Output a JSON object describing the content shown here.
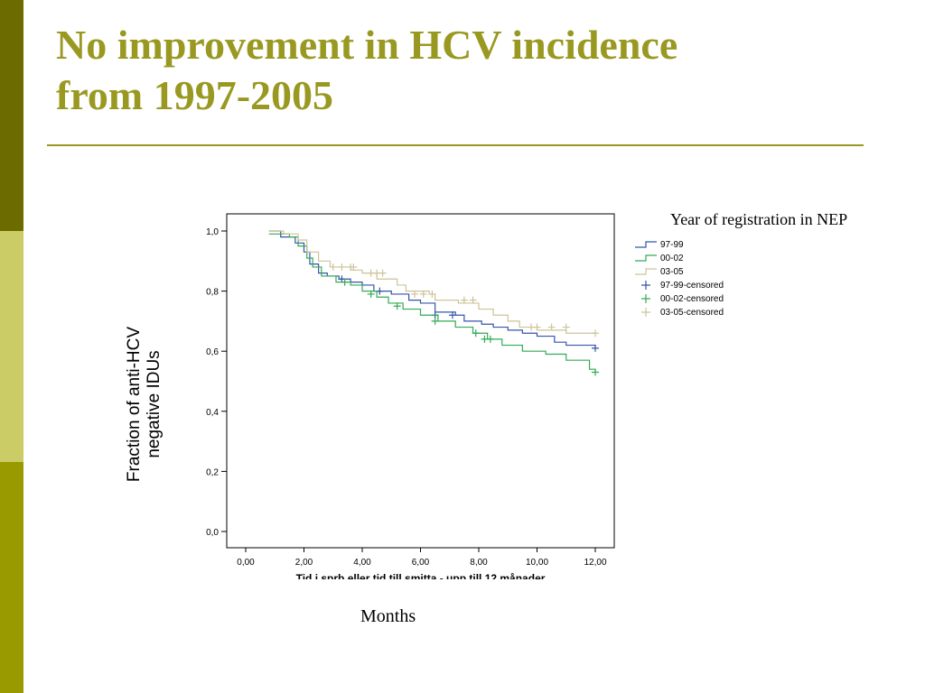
{
  "slide": {
    "title_line1": "No improvement in HCV incidence",
    "title_line2": "from 1997-2005",
    "y_axis_label_line1": "Fraction of anti-HCV",
    "y_axis_label_line2": "negative IDUs",
    "legend_title": "Year of registration in NEP",
    "x_caption": "Months",
    "colors": {
      "title": "#999922",
      "bar_dark": "#6b6b00",
      "bar_light": "#cccc66",
      "bar_mid": "#999900"
    }
  },
  "chart_data": {
    "type": "line",
    "xlabel": "Tid i sprb eller tid till smitta - upp till 12 månader",
    "x_ticks": [
      "0,00",
      "2,00",
      "4,00",
      "6,00",
      "8,00",
      "10,00",
      "12,00"
    ],
    "y_ticks": [
      "0,0",
      "0,2",
      "0,4",
      "0,6",
      "0,8",
      "1,0"
    ],
    "xlim": [
      0,
      12
    ],
    "ylim": [
      0,
      1
    ],
    "legend": [
      "97-99",
      "00-02",
      "03-05",
      "97-99-censored",
      "00-02-censored",
      "03-05-censored"
    ],
    "series": [
      {
        "name": "97-99",
        "color": "#3355aa",
        "steps": [
          [
            0.8,
            1.0
          ],
          [
            1.2,
            0.98
          ],
          [
            1.7,
            0.96
          ],
          [
            2.0,
            0.93
          ],
          [
            2.2,
            0.89
          ],
          [
            2.5,
            0.86
          ],
          [
            2.8,
            0.85
          ],
          [
            3.2,
            0.84
          ],
          [
            3.6,
            0.83
          ],
          [
            4.0,
            0.82
          ],
          [
            4.4,
            0.8
          ],
          [
            5.0,
            0.79
          ],
          [
            5.6,
            0.77
          ],
          [
            6.0,
            0.76
          ],
          [
            6.5,
            0.73
          ],
          [
            7.2,
            0.72
          ],
          [
            7.5,
            0.7
          ],
          [
            8.1,
            0.69
          ],
          [
            8.5,
            0.68
          ],
          [
            9.0,
            0.67
          ],
          [
            9.5,
            0.66
          ],
          [
            10.0,
            0.65
          ],
          [
            10.6,
            0.63
          ],
          [
            11.0,
            0.62
          ],
          [
            12.0,
            0.61
          ]
        ],
        "censored": [
          [
            3.3,
            0.84
          ],
          [
            4.6,
            0.8
          ],
          [
            6.5,
            0.72
          ],
          [
            7.1,
            0.72
          ],
          [
            12.0,
            0.61
          ]
        ]
      },
      {
        "name": "00-02",
        "color": "#33aa55",
        "steps": [
          [
            0.8,
            0.99
          ],
          [
            1.5,
            0.98
          ],
          [
            1.8,
            0.95
          ],
          [
            2.1,
            0.91
          ],
          [
            2.3,
            0.88
          ],
          [
            2.6,
            0.85
          ],
          [
            3.1,
            0.83
          ],
          [
            3.6,
            0.82
          ],
          [
            4.0,
            0.8
          ],
          [
            4.5,
            0.78
          ],
          [
            4.9,
            0.76
          ],
          [
            5.4,
            0.74
          ],
          [
            6.0,
            0.72
          ],
          [
            6.6,
            0.7
          ],
          [
            7.2,
            0.68
          ],
          [
            7.8,
            0.66
          ],
          [
            8.3,
            0.64
          ],
          [
            8.8,
            0.62
          ],
          [
            9.5,
            0.6
          ],
          [
            10.3,
            0.59
          ],
          [
            11.0,
            0.57
          ],
          [
            11.8,
            0.54
          ],
          [
            12.0,
            0.53
          ]
        ],
        "censored": [
          [
            3.4,
            0.83
          ],
          [
            4.3,
            0.79
          ],
          [
            5.2,
            0.75
          ],
          [
            6.5,
            0.7
          ],
          [
            7.9,
            0.66
          ],
          [
            8.2,
            0.64
          ],
          [
            8.4,
            0.64
          ],
          [
            12.0,
            0.53
          ]
        ]
      },
      {
        "name": "03-05",
        "color": "#ccc499",
        "steps": [
          [
            0.8,
            1.0
          ],
          [
            1.3,
            0.99
          ],
          [
            1.8,
            0.97
          ],
          [
            2.1,
            0.93
          ],
          [
            2.5,
            0.9
          ],
          [
            2.9,
            0.88
          ],
          [
            3.6,
            0.87
          ],
          [
            4.0,
            0.86
          ],
          [
            4.5,
            0.84
          ],
          [
            5.2,
            0.82
          ],
          [
            5.5,
            0.8
          ],
          [
            6.3,
            0.79
          ],
          [
            6.5,
            0.77
          ],
          [
            7.3,
            0.76
          ],
          [
            8.0,
            0.74
          ],
          [
            8.5,
            0.72
          ],
          [
            9.0,
            0.7
          ],
          [
            9.4,
            0.68
          ],
          [
            10.0,
            0.67
          ],
          [
            11.0,
            0.66
          ],
          [
            12.0,
            0.66
          ]
        ],
        "censored": [
          [
            3.0,
            0.88
          ],
          [
            3.3,
            0.88
          ],
          [
            3.6,
            0.88
          ],
          [
            3.7,
            0.88
          ],
          [
            4.3,
            0.86
          ],
          [
            4.5,
            0.86
          ],
          [
            4.7,
            0.86
          ],
          [
            5.8,
            0.79
          ],
          [
            6.1,
            0.79
          ],
          [
            6.4,
            0.79
          ],
          [
            7.5,
            0.77
          ],
          [
            7.8,
            0.77
          ],
          [
            9.8,
            0.68
          ],
          [
            10.0,
            0.68
          ],
          [
            10.5,
            0.68
          ],
          [
            11.0,
            0.68
          ],
          [
            12.0,
            0.66
          ]
        ]
      }
    ]
  }
}
